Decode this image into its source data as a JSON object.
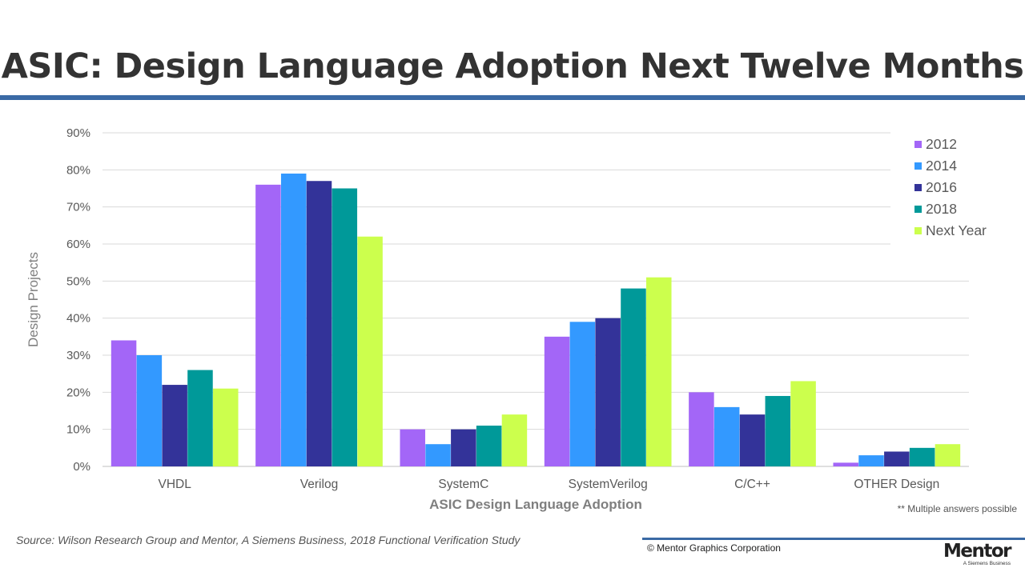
{
  "page": {
    "title": "ASIC: Design Language Adoption Next Twelve Months",
    "note": "** Multiple answers possible",
    "source": "Source:  Wilson Research Group and Mentor, A Siemens Business, 2018 Functional Verification Study",
    "copyright": "© Mentor Graphics Corporation",
    "logo": "Mentor",
    "logo_sub": "A Siemens Business"
  },
  "chart_data": {
    "type": "bar",
    "xlabel": "ASIC Design Language Adoption",
    "ylabel": "Design Projects",
    "ylim": [
      0,
      90
    ],
    "yticks": [
      "0%",
      "10%",
      "20%",
      "30%",
      "40%",
      "50%",
      "60%",
      "70%",
      "80%",
      "90%"
    ],
    "grid": true,
    "legend_position": "top-right",
    "categories": [
      "VHDL",
      "Verilog",
      "SystemC",
      "SystemVerilog",
      "C/C++",
      "OTHER Design"
    ],
    "series": [
      {
        "name": "2012",
        "color": "#a366f7",
        "values": [
          34,
          76,
          10,
          35,
          20,
          1
        ]
      },
      {
        "name": "2014",
        "color": "#3399ff",
        "values": [
          30,
          79,
          6,
          39,
          16,
          3
        ]
      },
      {
        "name": "2016",
        "color": "#333399",
        "values": [
          22,
          77,
          10,
          40,
          14,
          4
        ]
      },
      {
        "name": "2018",
        "color": "#009999",
        "values": [
          26,
          75,
          11,
          48,
          19,
          5
        ]
      },
      {
        "name": "Next Year",
        "color": "#ccff4d",
        "values": [
          21,
          62,
          14,
          51,
          23,
          6
        ]
      }
    ]
  }
}
